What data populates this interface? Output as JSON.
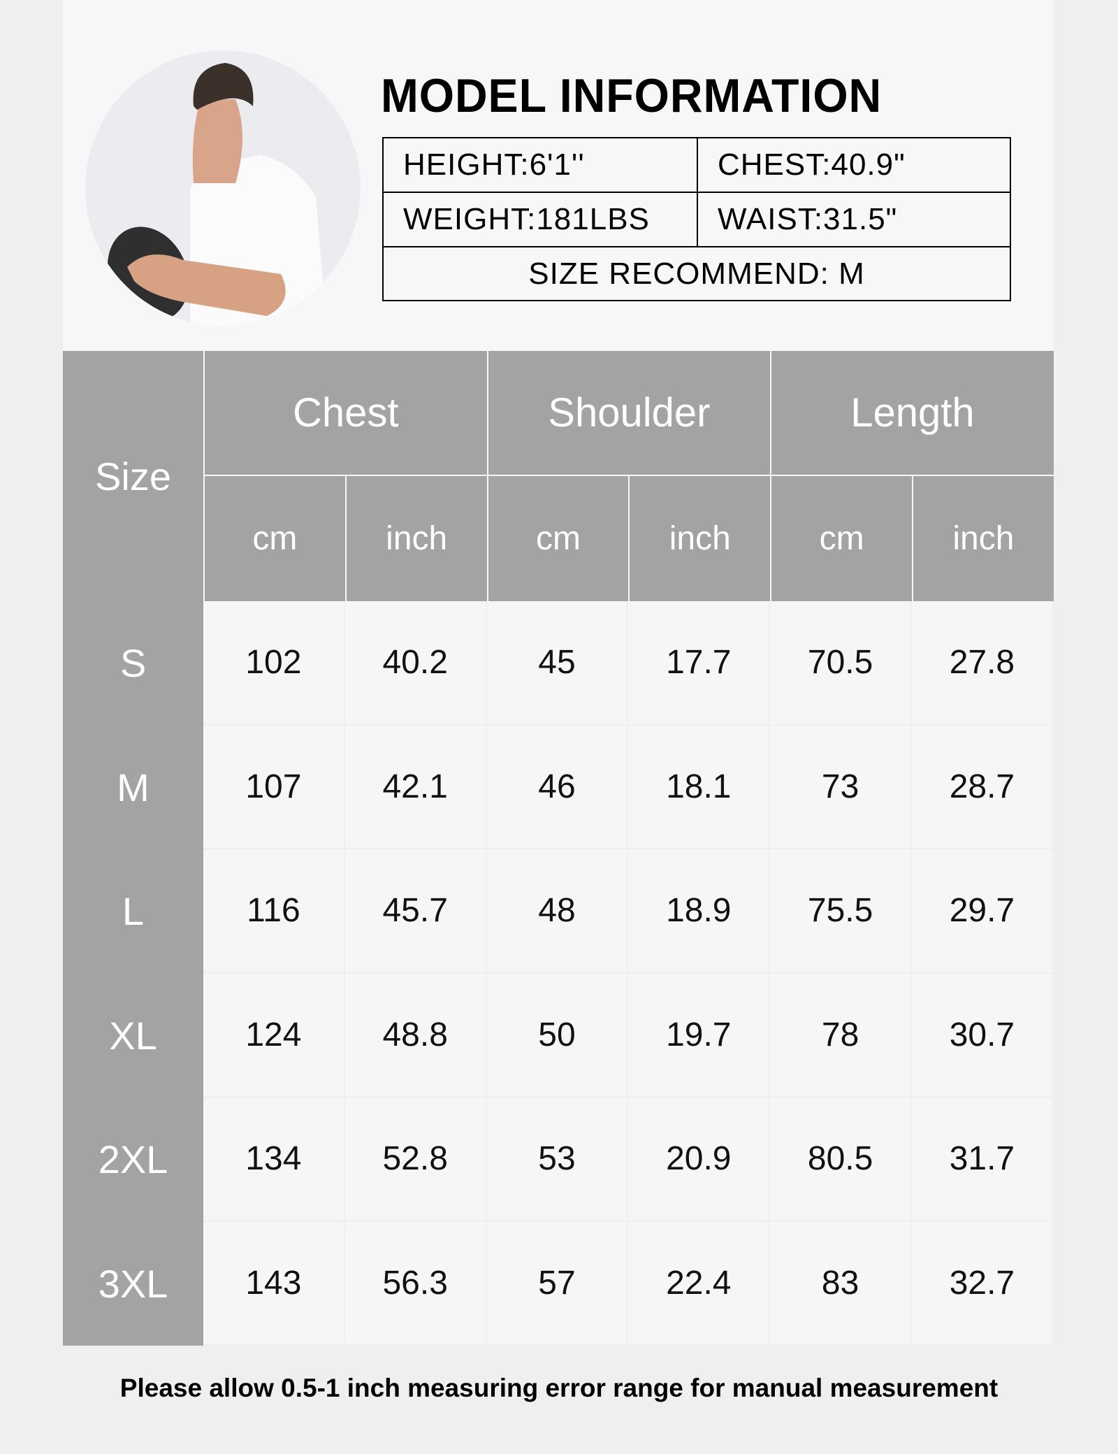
{
  "model_info": {
    "title": "MODEL INFORMATION",
    "height": "HEIGHT:6'1''",
    "chest": "CHEST:40.9\"",
    "weight": "WEIGHT:181LBS",
    "waist": "WAIST:31.5\"",
    "size_recommend": "SIZE RECOMMEND: M",
    "photo": "model-photo"
  },
  "size_table": {
    "size_header": "Size",
    "groups": [
      "Chest",
      "Shoulder",
      "Length"
    ],
    "units": [
      "cm",
      "inch",
      "cm",
      "inch",
      "cm",
      "inch"
    ],
    "rows": [
      {
        "size": "S",
        "values": [
          "102",
          "40.2",
          "45",
          "17.7",
          "70.5",
          "27.8"
        ]
      },
      {
        "size": "M",
        "values": [
          "107",
          "42.1",
          "46",
          "18.1",
          "73",
          "28.7"
        ]
      },
      {
        "size": "L",
        "values": [
          "116",
          "45.7",
          "48",
          "18.9",
          "75.5",
          "29.7"
        ]
      },
      {
        "size": "XL",
        "values": [
          "124",
          "48.8",
          "50",
          "19.7",
          "78",
          "30.7"
        ]
      },
      {
        "size": "2XL",
        "values": [
          "134",
          "52.8",
          "53",
          "20.9",
          "80.5",
          "31.7"
        ]
      },
      {
        "size": "3XL",
        "values": [
          "143",
          "56.3",
          "57",
          "22.4",
          "83",
          "32.7"
        ]
      }
    ]
  },
  "note": "Please allow 0.5-1 inch measuring error range for manual measurement",
  "colors": {
    "header_gray": "#a3a3a3",
    "panel": "#f7f7f7",
    "background": "#efefef"
  }
}
